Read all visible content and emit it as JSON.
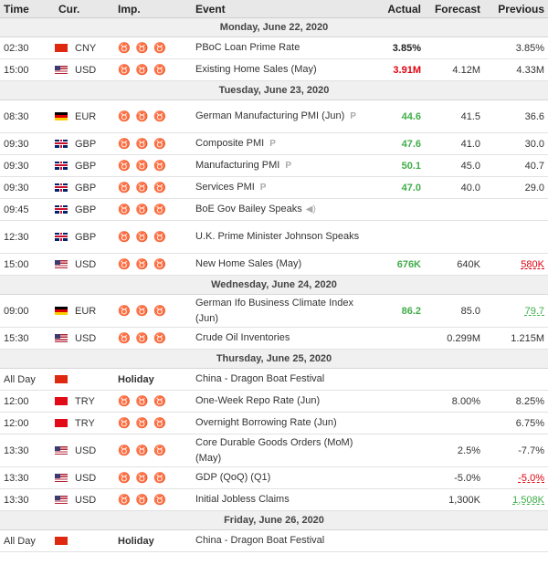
{
  "headers": {
    "time": "Time",
    "cur": "Cur.",
    "imp": "Imp.",
    "event": "Event",
    "actual": "Actual",
    "forecast": "Forecast",
    "previous": "Previous"
  },
  "days": [
    {
      "label": "Monday, June 22, 2020"
    },
    {
      "label": "Tuesday, June 23, 2020"
    },
    {
      "label": "Wednesday, June 24, 2020"
    },
    {
      "label": "Thursday, June 25, 2020"
    },
    {
      "label": "Friday, June 26, 2020"
    }
  ],
  "rows": [
    {
      "time": "02:30",
      "cur": "CNY",
      "event": "PBoC Loan Prime Rate",
      "actual": "3.85%",
      "forecast": "",
      "previous": "3.85%"
    },
    {
      "time": "15:00",
      "cur": "USD",
      "event": "Existing Home Sales (May)",
      "actual": "3.91M",
      "forecast": "4.12M",
      "previous": "4.33M"
    },
    {
      "time": "08:30",
      "cur": "EUR",
      "event": "German Manufacturing PMI (Jun)",
      "actual": "44.6",
      "forecast": "41.5",
      "previous": "36.6",
      "tag": "P"
    },
    {
      "time": "09:30",
      "cur": "GBP",
      "event": "Composite PMI",
      "actual": "47.6",
      "forecast": "41.0",
      "previous": "30.0",
      "tag": "P"
    },
    {
      "time": "09:30",
      "cur": "GBP",
      "event": "Manufacturing PMI",
      "actual": "50.1",
      "forecast": "45.0",
      "previous": "40.7",
      "tag": "P"
    },
    {
      "time": "09:30",
      "cur": "GBP",
      "event": "Services PMI",
      "actual": "47.0",
      "forecast": "40.0",
      "previous": "29.0",
      "tag": "P"
    },
    {
      "time": "09:45",
      "cur": "GBP",
      "event": "BoE Gov Bailey Speaks",
      "actual": "",
      "forecast": "",
      "previous": ""
    },
    {
      "time": "12:30",
      "cur": "GBP",
      "event": "U.K. Prime Minister Johnson Speaks",
      "actual": "",
      "forecast": "",
      "previous": ""
    },
    {
      "time": "15:00",
      "cur": "USD",
      "event": "New Home Sales (May)",
      "actual": "676K",
      "forecast": "640K",
      "previous": "580K"
    },
    {
      "time": "09:00",
      "cur": "EUR",
      "event": "German Ifo Business Climate Index (Jun)",
      "actual": "86.2",
      "forecast": "85.0",
      "previous": "79.7"
    },
    {
      "time": "15:30",
      "cur": "USD",
      "event": "Crude Oil Inventories",
      "actual": "",
      "forecast": "0.299M",
      "previous": "1.215M"
    },
    {
      "time": "All Day",
      "cur": "",
      "imp": "Holiday",
      "event": "China - Dragon Boat Festival",
      "actual": "",
      "forecast": "",
      "previous": ""
    },
    {
      "time": "12:00",
      "cur": "TRY",
      "event": "One-Week Repo Rate (Jun)",
      "actual": "",
      "forecast": "8.00%",
      "previous": "8.25%"
    },
    {
      "time": "12:00",
      "cur": "TRY",
      "event": "Overnight Borrowing Rate (Jun)",
      "actual": "",
      "forecast": "",
      "previous": "6.75%"
    },
    {
      "time": "13:30",
      "cur": "USD",
      "event": "Core Durable Goods Orders (MoM) (May)",
      "actual": "",
      "forecast": "2.5%",
      "previous": "-7.7%"
    },
    {
      "time": "13:30",
      "cur": "USD",
      "event": "GDP (QoQ) (Q1)",
      "actual": "",
      "forecast": "-5.0%",
      "previous": "-5.0%"
    },
    {
      "time": "13:30",
      "cur": "USD",
      "event": "Initial Jobless Claims",
      "actual": "",
      "forecast": "1,300K",
      "previous": "1,508K"
    },
    {
      "time": "All Day",
      "cur": "",
      "imp": "Holiday",
      "event": "China - Dragon Boat Festival",
      "actual": "",
      "forecast": "",
      "previous": ""
    }
  ],
  "icons": {
    "importance": "bull-icon",
    "speech": "speaker-icon",
    "flag_colors": {
      "CNY": "#de2910",
      "USD": "#b22234",
      "EUR": "#000000",
      "GBP": "#012169",
      "TRY": "#e30a17"
    }
  },
  "colors": {
    "better": "#41ad49",
    "worse": "#e0000e"
  }
}
